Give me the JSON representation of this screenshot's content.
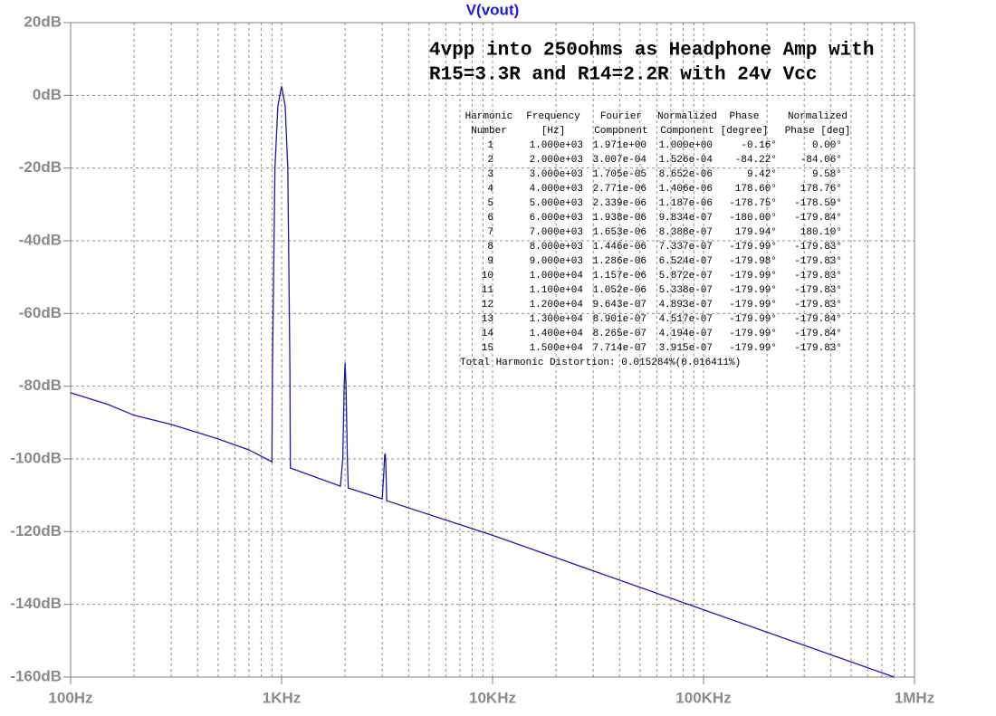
{
  "chart_data": {
    "type": "line",
    "title": "V(vout)",
    "annotation_lines": [
      "4vpp into 250ohms as Headphone Amp with",
      "R15=3.3R and R14=2.2R with 24v Vcc"
    ],
    "x_log": true,
    "grid": true,
    "xlim": [
      100,
      1000000
    ],
    "xticks": [
      {
        "value": 100,
        "label": "100Hz"
      },
      {
        "value": 1000,
        "label": "1KHz"
      },
      {
        "value": 10000,
        "label": "10KHz"
      },
      {
        "value": 100000,
        "label": "100KHz"
      },
      {
        "value": 1000000,
        "label": "1MHz"
      }
    ],
    "ylim": [
      -160,
      20
    ],
    "yticks": [
      {
        "value": 20,
        "label": "20dB"
      },
      {
        "value": 0,
        "label": "0dB"
      },
      {
        "value": -20,
        "label": "-20dB"
      },
      {
        "value": -40,
        "label": "-40dB"
      },
      {
        "value": -60,
        "label": "-60dB"
      },
      {
        "value": -80,
        "label": "-80dB"
      },
      {
        "value": -100,
        "label": "-100dB"
      },
      {
        "value": -120,
        "label": "-120dB"
      },
      {
        "value": -140,
        "label": "-140dB"
      },
      {
        "value": -160,
        "label": "-160dB"
      }
    ],
    "series": [
      {
        "name": "V(vout)",
        "color": "#1a1aa8",
        "x": [
          100,
          150,
          200,
          300,
          500,
          700,
          900,
          905,
          930,
          960,
          1000,
          1040,
          1070,
          1095,
          1100,
          1900,
          1950,
          1980,
          2000,
          2020,
          2050,
          2070,
          3000,
          3050,
          3080,
          3100,
          3120,
          3150,
          10000,
          800000
        ],
        "values": [
          -81.8,
          -85,
          -88,
          -90.5,
          -94.5,
          -97.5,
          -100.8,
          -75,
          -20,
          -3,
          2.5,
          -3,
          -20,
          -75,
          -102.5,
          -107.5,
          -100,
          -80,
          -73.5,
          -80,
          -100,
          -108,
          -111,
          -104,
          -99,
          -98.5,
          -102,
          -111.5,
          -121,
          -160
        ]
      }
    ],
    "harmonic_table": {
      "header": [
        [
          "Harmonic",
          "Frequency",
          "Fourier",
          "Normalized",
          "Phase",
          "Normalized"
        ],
        [
          "Number",
          "[Hz]",
          "Component",
          "Component",
          "[degree]",
          "Phase [deg]"
        ]
      ],
      "rows": [
        [
          "1",
          "1.000e+03",
          "1.971e+00",
          "1.000e+00",
          "-0.16°",
          "0.00°"
        ],
        [
          "2",
          "2.000e+03",
          "3.007e-04",
          "1.526e-04",
          "-84.22°",
          "-84.06°"
        ],
        [
          "3",
          "3.000e+03",
          "1.705e-05",
          "8.652e-06",
          "9.42°",
          "9.58°"
        ],
        [
          "4",
          "4.000e+03",
          "2.771e-06",
          "1.406e-06",
          "178.60°",
          "178.76°"
        ],
        [
          "5",
          "5.000e+03",
          "2.339e-06",
          "1.187e-06",
          "-178.75°",
          "-178.59°"
        ],
        [
          "6",
          "6.000e+03",
          "1.938e-06",
          "9.834e-07",
          "-180.00°",
          "-179.84°"
        ],
        [
          "7",
          "7.000e+03",
          "1.653e-06",
          "8.388e-07",
          "179.94°",
          "180.10°"
        ],
        [
          "8",
          "8.000e+03",
          "1.446e-06",
          "7.337e-07",
          "-179.99°",
          "-179.83°"
        ],
        [
          "9",
          "9.000e+03",
          "1.286e-06",
          "6.524e-07",
          "-179.98°",
          "-179.83°"
        ],
        [
          "10",
          "1.000e+04",
          "1.157e-06",
          "5.872e-07",
          "-179.99°",
          "-179.83°"
        ],
        [
          "11",
          "1.100e+04",
          "1.052e-06",
          "5.338e-07",
          "-179.99°",
          "-179.83°"
        ],
        [
          "12",
          "1.200e+04",
          "9.643e-07",
          "4.893e-07",
          "-179.99°",
          "-179.83°"
        ],
        [
          "13",
          "1.300e+04",
          "8.901e-07",
          "4.517e-07",
          "-179.99°",
          "-179.84°"
        ],
        [
          "14",
          "1.400e+04",
          "8.265e-07",
          "4.194e-07",
          "-179.99°",
          "-179.84°"
        ],
        [
          "15",
          "1.500e+04",
          "7.714e-07",
          "3.915e-07",
          "-179.99°",
          "-179.83°"
        ]
      ],
      "footer": "Total Harmonic Distortion: 0.015284%(0.016411%)"
    }
  }
}
